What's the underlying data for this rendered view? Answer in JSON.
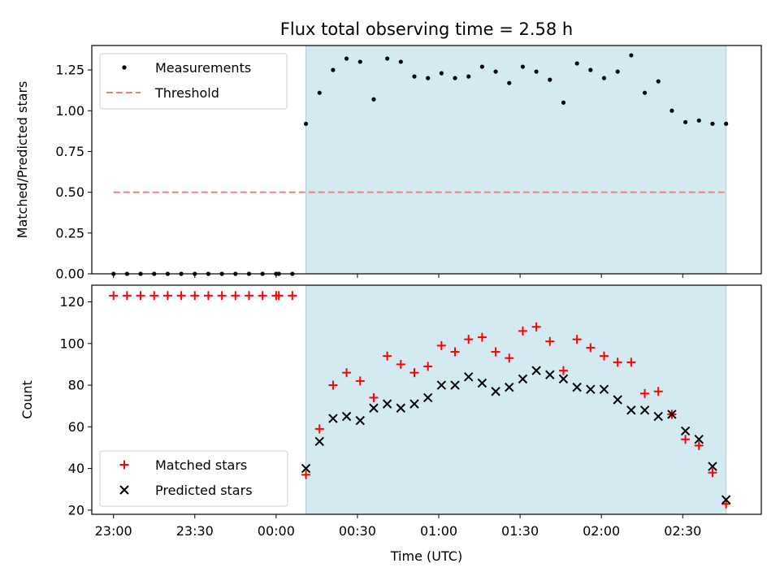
{
  "chart_data": {
    "type": "scatter",
    "title": "Flux total observing time = 2.58 h",
    "xlabel": "Time (UTC)",
    "x_ticks": [
      "23:00",
      "23:30",
      "00:00",
      "00:30",
      "01:00",
      "01:30",
      "02:00",
      "02:30"
    ],
    "highlight_span": {
      "start": "00:11",
      "end": "02:46",
      "color": "#d3eaf0"
    },
    "colors": {
      "measurements": "#000000",
      "threshold": "#f08080",
      "matched": "#ff0000",
      "predicted": "#000000",
      "shade": "#d3eaf0"
    },
    "panels": [
      {
        "ylabel": "Matched/Predicted stars",
        "ylim": [
          0,
          1.4
        ],
        "y_ticks": [
          "0.00",
          "0.25",
          "0.50",
          "0.75",
          "1.00",
          "1.25"
        ],
        "legend": {
          "position": "top-left",
          "entries": [
            "Measurements",
            "Threshold"
          ]
        },
        "series": [
          {
            "name": "Measurements",
            "marker": "dot",
            "x": [
              "23:00",
              "23:05",
              "23:10",
              "23:15",
              "23:20",
              "23:25",
              "23:30",
              "23:35",
              "23:40",
              "23:45",
              "23:50",
              "23:55",
              "00:00",
              "00:01",
              "00:06",
              "00:11",
              "00:16",
              "00:21",
              "00:26",
              "00:31",
              "00:36",
              "00:41",
              "00:46",
              "00:51",
              "00:56",
              "01:01",
              "01:06",
              "01:11",
              "01:16",
              "01:21",
              "01:26",
              "01:31",
              "01:36",
              "01:41",
              "01:46",
              "01:51",
              "01:56",
              "02:01",
              "02:06",
              "02:11",
              "02:16",
              "02:21",
              "02:26",
              "02:31",
              "02:36",
              "02:41",
              "02:46"
            ],
            "y": [
              0,
              0,
              0,
              0,
              0,
              0,
              0,
              0,
              0,
              0,
              0,
              0,
              0,
              0,
              0,
              0.92,
              1.11,
              1.25,
              1.32,
              1.3,
              1.07,
              1.32,
              1.3,
              1.21,
              1.2,
              1.23,
              1.2,
              1.21,
              1.27,
              1.24,
              1.17,
              1.27,
              1.24,
              1.19,
              1.05,
              1.29,
              1.25,
              1.2,
              1.24,
              1.34,
              1.11,
              1.18,
              1.0,
              0.93,
              0.94,
              0.92,
              0.92
            ]
          },
          {
            "name": "Threshold",
            "marker": "dashed-line",
            "x": [
              "23:00",
              "02:46"
            ],
            "y": [
              0.5,
              0.5
            ]
          }
        ]
      },
      {
        "ylabel": "Count",
        "ylim": [
          18,
          128
        ],
        "y_ticks": [
          "20",
          "40",
          "60",
          "80",
          "100",
          "120"
        ],
        "legend": {
          "position": "bottom-left",
          "entries": [
            "Matched stars",
            "Predicted stars"
          ]
        },
        "series": [
          {
            "name": "Matched stars",
            "marker": "plus",
            "x": [
              "23:00",
              "23:05",
              "23:10",
              "23:15",
              "23:20",
              "23:25",
              "23:30",
              "23:35",
              "23:40",
              "23:45",
              "23:50",
              "23:55",
              "00:00",
              "00:01",
              "00:06",
              "00:11",
              "00:16",
              "00:21",
              "00:26",
              "00:31",
              "00:36",
              "00:41",
              "00:46",
              "00:51",
              "00:56",
              "01:01",
              "01:06",
              "01:11",
              "01:16",
              "01:21",
              "01:26",
              "01:31",
              "01:36",
              "01:41",
              "01:46",
              "01:51",
              "01:56",
              "02:01",
              "02:06",
              "02:11",
              "02:16",
              "02:21",
              "02:26",
              "02:31",
              "02:36",
              "02:41",
              "02:46"
            ],
            "y": [
              123,
              123,
              123,
              123,
              123,
              123,
              123,
              123,
              123,
              123,
              123,
              123,
              123,
              123,
              123,
              37,
              59,
              80,
              86,
              82,
              74,
              94,
              90,
              86,
              89,
              99,
              96,
              102,
              103,
              96,
              93,
              106,
              108,
              101,
              87,
              102,
              98,
              94,
              91,
              91,
              76,
              77,
              66,
              54,
              51,
              38,
              23
            ]
          },
          {
            "name": "Predicted stars",
            "marker": "x",
            "x": [
              "00:11",
              "00:16",
              "00:21",
              "00:26",
              "00:31",
              "00:36",
              "00:41",
              "00:46",
              "00:51",
              "00:56",
              "01:01",
              "01:06",
              "01:11",
              "01:16",
              "01:21",
              "01:26",
              "01:31",
              "01:36",
              "01:41",
              "01:46",
              "01:51",
              "01:56",
              "02:01",
              "02:06",
              "02:11",
              "02:16",
              "02:21",
              "02:26",
              "02:31",
              "02:36",
              "02:41",
              "02:46"
            ],
            "y": [
              40,
              53,
              64,
              65,
              63,
              69,
              71,
              69,
              71,
              74,
              80,
              80,
              84,
              81,
              77,
              79,
              83,
              87,
              85,
              83,
              79,
              78,
              78,
              73,
              68,
              68,
              65,
              66,
              58,
              54,
              41,
              25
            ]
          }
        ]
      }
    ]
  }
}
